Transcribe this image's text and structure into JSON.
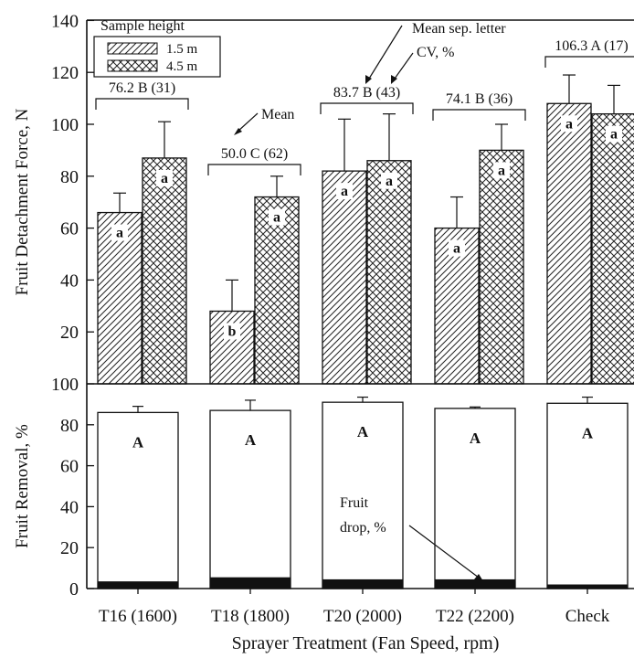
{
  "chart_data": [
    {
      "type": "bar",
      "panel": "top",
      "ylabel": "Fruit Detachment Force, N",
      "ylim": [
        0,
        140
      ],
      "yticks": [
        20,
        40,
        60,
        80,
        100,
        120,
        140
      ],
      "categories": [
        "T16 (1600)",
        "T18 (1800)",
        "T20 (2000)",
        "T22 (2200)",
        "Check"
      ],
      "legend": {
        "title": "Sample height",
        "placement": "top-left",
        "entries": [
          "1.5 m",
          "4.5 m"
        ]
      },
      "series": [
        {
          "name": "1.5 m",
          "pattern": "diagonal-hatch",
          "values": [
            66,
            28,
            82,
            60,
            108
          ],
          "errors": [
            7.5,
            12,
            20,
            12,
            11
          ],
          "letters": [
            "a",
            "b",
            "a",
            "a",
            "a"
          ]
        },
        {
          "name": "4.5 m",
          "pattern": "cross-hatch",
          "values": [
            87,
            72,
            86,
            90,
            104
          ],
          "errors": [
            14,
            8,
            18,
            10,
            11
          ],
          "letters": [
            "a",
            "a",
            "a",
            "a",
            "a"
          ]
        }
      ],
      "group_summaries": [
        {
          "mean": "76.2",
          "letter": "B",
          "cv": "(31)"
        },
        {
          "mean": "50.0",
          "letter": "C",
          "cv": "(62)"
        },
        {
          "mean": "83.7",
          "letter": "B",
          "cv": "(43)"
        },
        {
          "mean": "74.1",
          "letter": "B",
          "cv": "(36)"
        },
        {
          "mean": "106.3",
          "letter": "A",
          "cv": "(17)"
        }
      ],
      "annotations": {
        "mean": "Mean",
        "mean_sep_letter": "Mean sep. letter",
        "cv": "CV, %"
      }
    },
    {
      "type": "bar",
      "panel": "bottom",
      "stacked": true,
      "ylabel": "Fruit Removal, %",
      "ylim": [
        0,
        100
      ],
      "yticks": [
        0,
        20,
        40,
        60,
        80,
        100
      ],
      "xlabel": "Sprayer Treatment (Fan Speed, rpm)",
      "categories": [
        "T16 (1600)",
        "T18 (1800)",
        "T20 (2000)",
        "T22 (2200)",
        "Check"
      ],
      "series": [
        {
          "name": "Fruit drop, %",
          "values": [
            3.5,
            5.5,
            4.5,
            4.5,
            2
          ],
          "fill": "#111111"
        },
        {
          "name": "Fruit removal",
          "values": [
            82.5,
            81.5,
            86.5,
            83.5,
            88.5
          ],
          "fill": "#ffffff"
        }
      ],
      "totals": [
        86,
        87,
        91,
        88,
        90.5
      ],
      "errors": [
        3,
        5,
        2.5,
        0.7,
        3
      ],
      "letters": [
        "A",
        "A",
        "A",
        "A",
        "A"
      ],
      "annotations": {
        "fruit_drop": [
          "Fruit",
          "drop, %"
        ]
      }
    }
  ]
}
